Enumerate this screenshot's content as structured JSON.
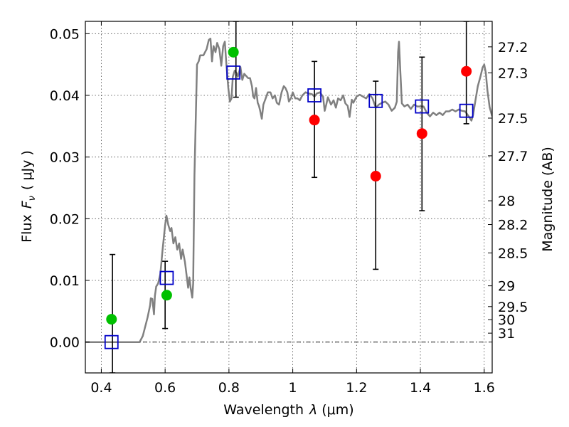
{
  "chart_data": {
    "type": "scatter",
    "xlabel_prefix": "Wavelength",
    "xlabel_var": "λ",
    "xlabel_unit": "(μm)",
    "ylabel_prefix": "Flux",
    "ylabel_var": "F",
    "ylabel_sub": "ν",
    "ylabel_unit": "( μJy )",
    "y2label": "Magnitude (AB)",
    "xlim": [
      0.35,
      1.625
    ],
    "ylim": [
      -0.005,
      0.052
    ],
    "xticks": [
      0.4,
      0.6,
      0.8,
      1.0,
      1.2,
      1.4,
      1.6
    ],
    "xtick_labels": [
      "0.4",
      "0.6",
      "0.8",
      "1",
      "1.2",
      "1.4",
      "1.6"
    ],
    "yticks": [
      0.0,
      0.01,
      0.02,
      0.03,
      0.04,
      0.05
    ],
    "ytick_labels": [
      "0.00",
      "0.01",
      "0.02",
      "0.03",
      "0.04",
      "0.05"
    ],
    "mag_ticks": [
      {
        "label": "27.2",
        "value": 27.2
      },
      {
        "label": "27.3",
        "value": 27.3
      },
      {
        "label": "27.5",
        "value": 27.5
      },
      {
        "label": "27.7",
        "value": 27.7
      },
      {
        "label": "28",
        "value": 28.0
      },
      {
        "label": "28.2",
        "value": 28.2
      },
      {
        "label": "28.5",
        "value": 28.5
      },
      {
        "label": "29",
        "value": 29.0
      },
      {
        "label": "29.5",
        "value": 29.5
      },
      {
        "label": "30",
        "value": 30.0
      },
      {
        "label": "31",
        "value": 31.0
      }
    ],
    "grid": true,
    "zero_line": true,
    "colors": {
      "model": "#808080",
      "green": "#00c000",
      "red": "#ff0000",
      "square": "#0000c8",
      "errorbar": "#000000"
    },
    "model_spectrum": [
      [
        0.35,
        0.0
      ],
      [
        0.52,
        0.0
      ],
      [
        0.53,
        0.001
      ],
      [
        0.545,
        0.004
      ],
      [
        0.553,
        0.006
      ],
      [
        0.555,
        0.0071
      ],
      [
        0.56,
        0.007
      ],
      [
        0.565,
        0.0045
      ],
      [
        0.568,
        0.0075
      ],
      [
        0.572,
        0.009
      ],
      [
        0.578,
        0.0095
      ],
      [
        0.585,
        0.011
      ],
      [
        0.592,
        0.015
      ],
      [
        0.6,
        0.019
      ],
      [
        0.604,
        0.0205
      ],
      [
        0.61,
        0.019
      ],
      [
        0.616,
        0.018
      ],
      [
        0.62,
        0.0185
      ],
      [
        0.626,
        0.016
      ],
      [
        0.632,
        0.017
      ],
      [
        0.638,
        0.015
      ],
      [
        0.644,
        0.016
      ],
      [
        0.65,
        0.0135
      ],
      [
        0.655,
        0.015
      ],
      [
        0.662,
        0.013
      ],
      [
        0.668,
        0.0105
      ],
      [
        0.672,
        0.0088
      ],
      [
        0.676,
        0.0105
      ],
      [
        0.68,
        0.0088
      ],
      [
        0.685,
        0.0072
      ],
      [
        0.688,
        0.0095
      ],
      [
        0.692,
        0.027
      ],
      [
        0.696,
        0.036
      ],
      [
        0.7,
        0.045
      ],
      [
        0.705,
        0.0455
      ],
      [
        0.71,
        0.0465
      ],
      [
        0.72,
        0.0465
      ],
      [
        0.73,
        0.0475
      ],
      [
        0.737,
        0.049
      ],
      [
        0.742,
        0.0492
      ],
      [
        0.747,
        0.0455
      ],
      [
        0.752,
        0.048
      ],
      [
        0.758,
        0.047
      ],
      [
        0.763,
        0.0485
      ],
      [
        0.77,
        0.0475
      ],
      [
        0.776,
        0.0448
      ],
      [
        0.782,
        0.048
      ],
      [
        0.787,
        0.0487
      ],
      [
        0.792,
        0.045
      ],
      [
        0.798,
        0.0412
      ],
      [
        0.803,
        0.039
      ],
      [
        0.808,
        0.0395
      ],
      [
        0.812,
        0.043
      ],
      [
        0.818,
        0.044
      ],
      [
        0.823,
        0.0437
      ],
      [
        0.828,
        0.043
      ],
      [
        0.836,
        0.0446
      ],
      [
        0.842,
        0.0425
      ],
      [
        0.848,
        0.0435
      ],
      [
        0.853,
        0.0432
      ],
      [
        0.86,
        0.0428
      ],
      [
        0.866,
        0.0428
      ],
      [
        0.872,
        0.0415
      ],
      [
        0.876,
        0.0398
      ],
      [
        0.88,
        0.0395
      ],
      [
        0.885,
        0.0412
      ],
      [
        0.89,
        0.0388
      ],
      [
        0.894,
        0.0383
      ],
      [
        0.898,
        0.0375
      ],
      [
        0.903,
        0.0362
      ],
      [
        0.908,
        0.0385
      ],
      [
        0.915,
        0.0395
      ],
      [
        0.922,
        0.0405
      ],
      [
        0.93,
        0.0405
      ],
      [
        0.937,
        0.0395
      ],
      [
        0.944,
        0.04
      ],
      [
        0.95,
        0.0388
      ],
      [
        0.957,
        0.0385
      ],
      [
        0.965,
        0.0405
      ],
      [
        0.972,
        0.0415
      ],
      [
        0.977,
        0.0412
      ],
      [
        0.983,
        0.0405
      ],
      [
        0.988,
        0.039
      ],
      [
        0.995,
        0.0396
      ],
      [
        1.0,
        0.0405
      ],
      [
        1.008,
        0.0395
      ],
      [
        1.015,
        0.0395
      ],
      [
        1.022,
        0.0392
      ],
      [
        1.03,
        0.04
      ],
      [
        1.04,
        0.0405
      ],
      [
        1.05,
        0.0403
      ],
      [
        1.06,
        0.0402
      ],
      [
        1.068,
        0.0398
      ],
      [
        1.075,
        0.0403
      ],
      [
        1.085,
        0.0405
      ],
      [
        1.095,
        0.0398
      ],
      [
        1.1,
        0.0375
      ],
      [
        1.105,
        0.0385
      ],
      [
        1.11,
        0.0397
      ],
      [
        1.12,
        0.0385
      ],
      [
        1.128,
        0.0392
      ],
      [
        1.135,
        0.038
      ],
      [
        1.142,
        0.0395
      ],
      [
        1.15,
        0.0392
      ],
      [
        1.158,
        0.04
      ],
      [
        1.165,
        0.0387
      ],
      [
        1.172,
        0.0383
      ],
      [
        1.178,
        0.0365
      ],
      [
        1.185,
        0.0393
      ],
      [
        1.19,
        0.0388
      ],
      [
        1.2,
        0.0398
      ],
      [
        1.21,
        0.0401
      ],
      [
        1.22,
        0.0398
      ],
      [
        1.23,
        0.0395
      ],
      [
        1.24,
        0.0402
      ],
      [
        1.25,
        0.0395
      ],
      [
        1.26,
        0.038
      ],
      [
        1.27,
        0.0385
      ],
      [
        1.28,
        0.0388
      ],
      [
        1.29,
        0.039
      ],
      [
        1.3,
        0.0385
      ],
      [
        1.31,
        0.0375
      ],
      [
        1.32,
        0.038
      ],
      [
        1.326,
        0.039
      ],
      [
        1.33,
        0.047
      ],
      [
        1.333,
        0.0487
      ],
      [
        1.337,
        0.044
      ],
      [
        1.342,
        0.0387
      ],
      [
        1.35,
        0.0382
      ],
      [
        1.36,
        0.0385
      ],
      [
        1.37,
        0.0378
      ],
      [
        1.38,
        0.0385
      ],
      [
        1.39,
        0.0382
      ],
      [
        1.4,
        0.0382
      ],
      [
        1.41,
        0.0382
      ],
      [
        1.42,
        0.0372
      ],
      [
        1.43,
        0.0366
      ],
      [
        1.44,
        0.0372
      ],
      [
        1.45,
        0.0368
      ],
      [
        1.46,
        0.0372
      ],
      [
        1.47,
        0.0368
      ],
      [
        1.48,
        0.0374
      ],
      [
        1.49,
        0.0374
      ],
      [
        1.5,
        0.0377
      ],
      [
        1.51,
        0.0374
      ],
      [
        1.52,
        0.0377
      ],
      [
        1.53,
        0.0375
      ],
      [
        1.54,
        0.0374
      ],
      [
        1.55,
        0.0367
      ],
      [
        1.56,
        0.0359
      ],
      [
        1.565,
        0.0368
      ],
      [
        1.572,
        0.039
      ],
      [
        1.58,
        0.0415
      ],
      [
        1.588,
        0.043
      ],
      [
        1.595,
        0.0445
      ],
      [
        1.6,
        0.045
      ],
      [
        1.605,
        0.0437
      ],
      [
        1.61,
        0.0408
      ],
      [
        1.617,
        0.0381
      ],
      [
        1.625,
        0.0366
      ]
    ],
    "green_points": [
      {
        "x": 0.432,
        "y": 0.0037
      },
      {
        "x": 0.605,
        "y": 0.0076
      },
      {
        "x": 0.814,
        "y": 0.047
      }
    ],
    "red_points": [
      {
        "x": 1.068,
        "y": 0.036
      },
      {
        "x": 1.26,
        "y": 0.0269
      },
      {
        "x": 1.405,
        "y": 0.0338
      },
      {
        "x": 1.544,
        "y": 0.0439
      }
    ],
    "square_points": [
      {
        "x": 0.432,
        "y": 0.0
      },
      {
        "x": 0.605,
        "y": 0.0104
      },
      {
        "x": 0.814,
        "y": 0.0437
      },
      {
        "x": 1.068,
        "y": 0.04
      },
      {
        "x": 1.26,
        "y": 0.0391
      },
      {
        "x": 1.405,
        "y": 0.0382
      },
      {
        "x": 1.544,
        "y": 0.0375
      }
    ],
    "error_bars": [
      {
        "x": 0.435,
        "ylow": -0.005,
        "yhigh": 0.0142
      },
      {
        "x": 0.6,
        "ylow": 0.0022,
        "yhigh": 0.0131
      },
      {
        "x": 0.822,
        "ylow": 0.0397,
        "yhigh": 0.052
      },
      {
        "x": 1.068,
        "ylow": 0.0267,
        "yhigh": 0.0455
      },
      {
        "x": 1.26,
        "ylow": 0.0118,
        "yhigh": 0.0423
      },
      {
        "x": 1.405,
        "ylow": 0.0213,
        "yhigh": 0.0462
      },
      {
        "x": 1.544,
        "ylow": 0.0354,
        "yhigh": 0.052
      }
    ]
  }
}
